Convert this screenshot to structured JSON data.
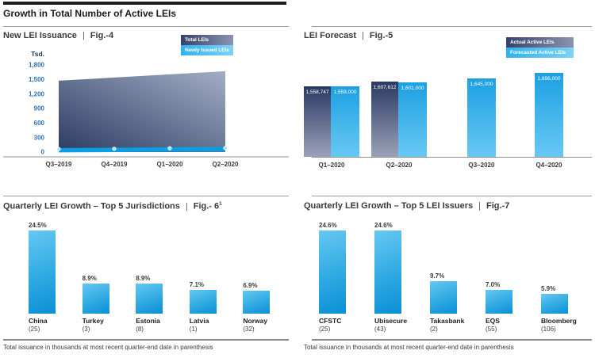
{
  "header": "Growth in Total Number of Active LEIs",
  "footnote": "Total issuance in thousands at most recent quarter-end date in parenthesis",
  "colors": {
    "header_rule": "#1d1d1b",
    "axis_tick_blue": "#2c73b8",
    "dark_series_top": "#2b3a63",
    "dark_series_bottom": "#9aa1b8",
    "blue_series_top": "#1da0e3",
    "blue_series_bottom": "#68c8f3",
    "growth_bar_light": "#66c8f2",
    "growth_bar_dark": "#0a8fd6",
    "newly_issued_line": "#0a9ee3"
  },
  "chart_data": [
    {
      "id": "fig4",
      "type": "area",
      "title": "New LEI Issuance",
      "fig": "Fig.-4",
      "unit_label": "Tsd.",
      "x": [
        "Q3–2019",
        "Q4–2019",
        "Q1–2020",
        "Q2–2020"
      ],
      "yticks": [
        0,
        300,
        600,
        900,
        1200,
        1500,
        1800
      ],
      "ytick_labels": [
        "0",
        "300",
        "600",
        "900",
        "1,200",
        "1,500",
        "1,800"
      ],
      "ylim": [
        0,
        1800
      ],
      "legend_position": "top-right",
      "series": [
        {
          "name": "Total LEIs",
          "style": "dark",
          "values": [
            1475,
            1540,
            1605,
            1670
          ]
        },
        {
          "name": "Newly Issued LEIs",
          "style": "blue",
          "values": [
            40,
            45,
            55,
            60
          ]
        }
      ]
    },
    {
      "id": "fig5",
      "type": "bar",
      "title": "LEI Forecast",
      "fig": "Fig.-5",
      "x": [
        "Q1–2020",
        "Q2–2020",
        "Q3–2020",
        "Q4–2020"
      ],
      "legend_position": "top-right",
      "series": [
        {
          "name": "Actual Active LEIs",
          "style": "dark",
          "values": [
            1558747,
            1607612,
            null,
            null
          ],
          "labels": [
            "1,558,747",
            "1,607,612",
            "",
            ""
          ]
        },
        {
          "name": "Forecasted Active LEIs",
          "style": "blue",
          "values": [
            1559000,
            1601000,
            1645000,
            1696000
          ],
          "labels": [
            "1,559,000",
            "1,601,000",
            "1,645,000",
            "1,696,000"
          ]
        }
      ]
    },
    {
      "id": "fig6",
      "type": "bar",
      "title": "Quarterly LEI Growth – Top 5 Jurisdictions",
      "fig": "Fig.- 6",
      "fig_sup": "1",
      "categories": [
        "China",
        "Turkey",
        "Estonia",
        "Latvia",
        "Norway"
      ],
      "counts": [
        "(25)",
        "(3)",
        "(8)",
        "(1)",
        "(32)"
      ],
      "values": [
        24.5,
        8.9,
        8.9,
        7.1,
        6.9
      ],
      "value_labels": [
        "24.5%",
        "8.9%",
        "8.9%",
        "7.1%",
        "6.9%"
      ]
    },
    {
      "id": "fig7",
      "type": "bar",
      "title": "Quarterly LEI Growth – Top 5 LEI Issuers",
      "fig": "Fig.-7",
      "fig_sup": "",
      "categories": [
        "CFSTC",
        "Ubisecure",
        "Takasbank",
        "EQS",
        "Bloomberg"
      ],
      "counts": [
        "(25)",
        "(43)",
        "(2)",
        "(55)",
        "(106)"
      ],
      "values": [
        24.6,
        24.6,
        9.7,
        7.0,
        5.9
      ],
      "value_labels": [
        "24.6%",
        "24.6%",
        "9.7%",
        "7.0%",
        "5.9%"
      ]
    }
  ]
}
